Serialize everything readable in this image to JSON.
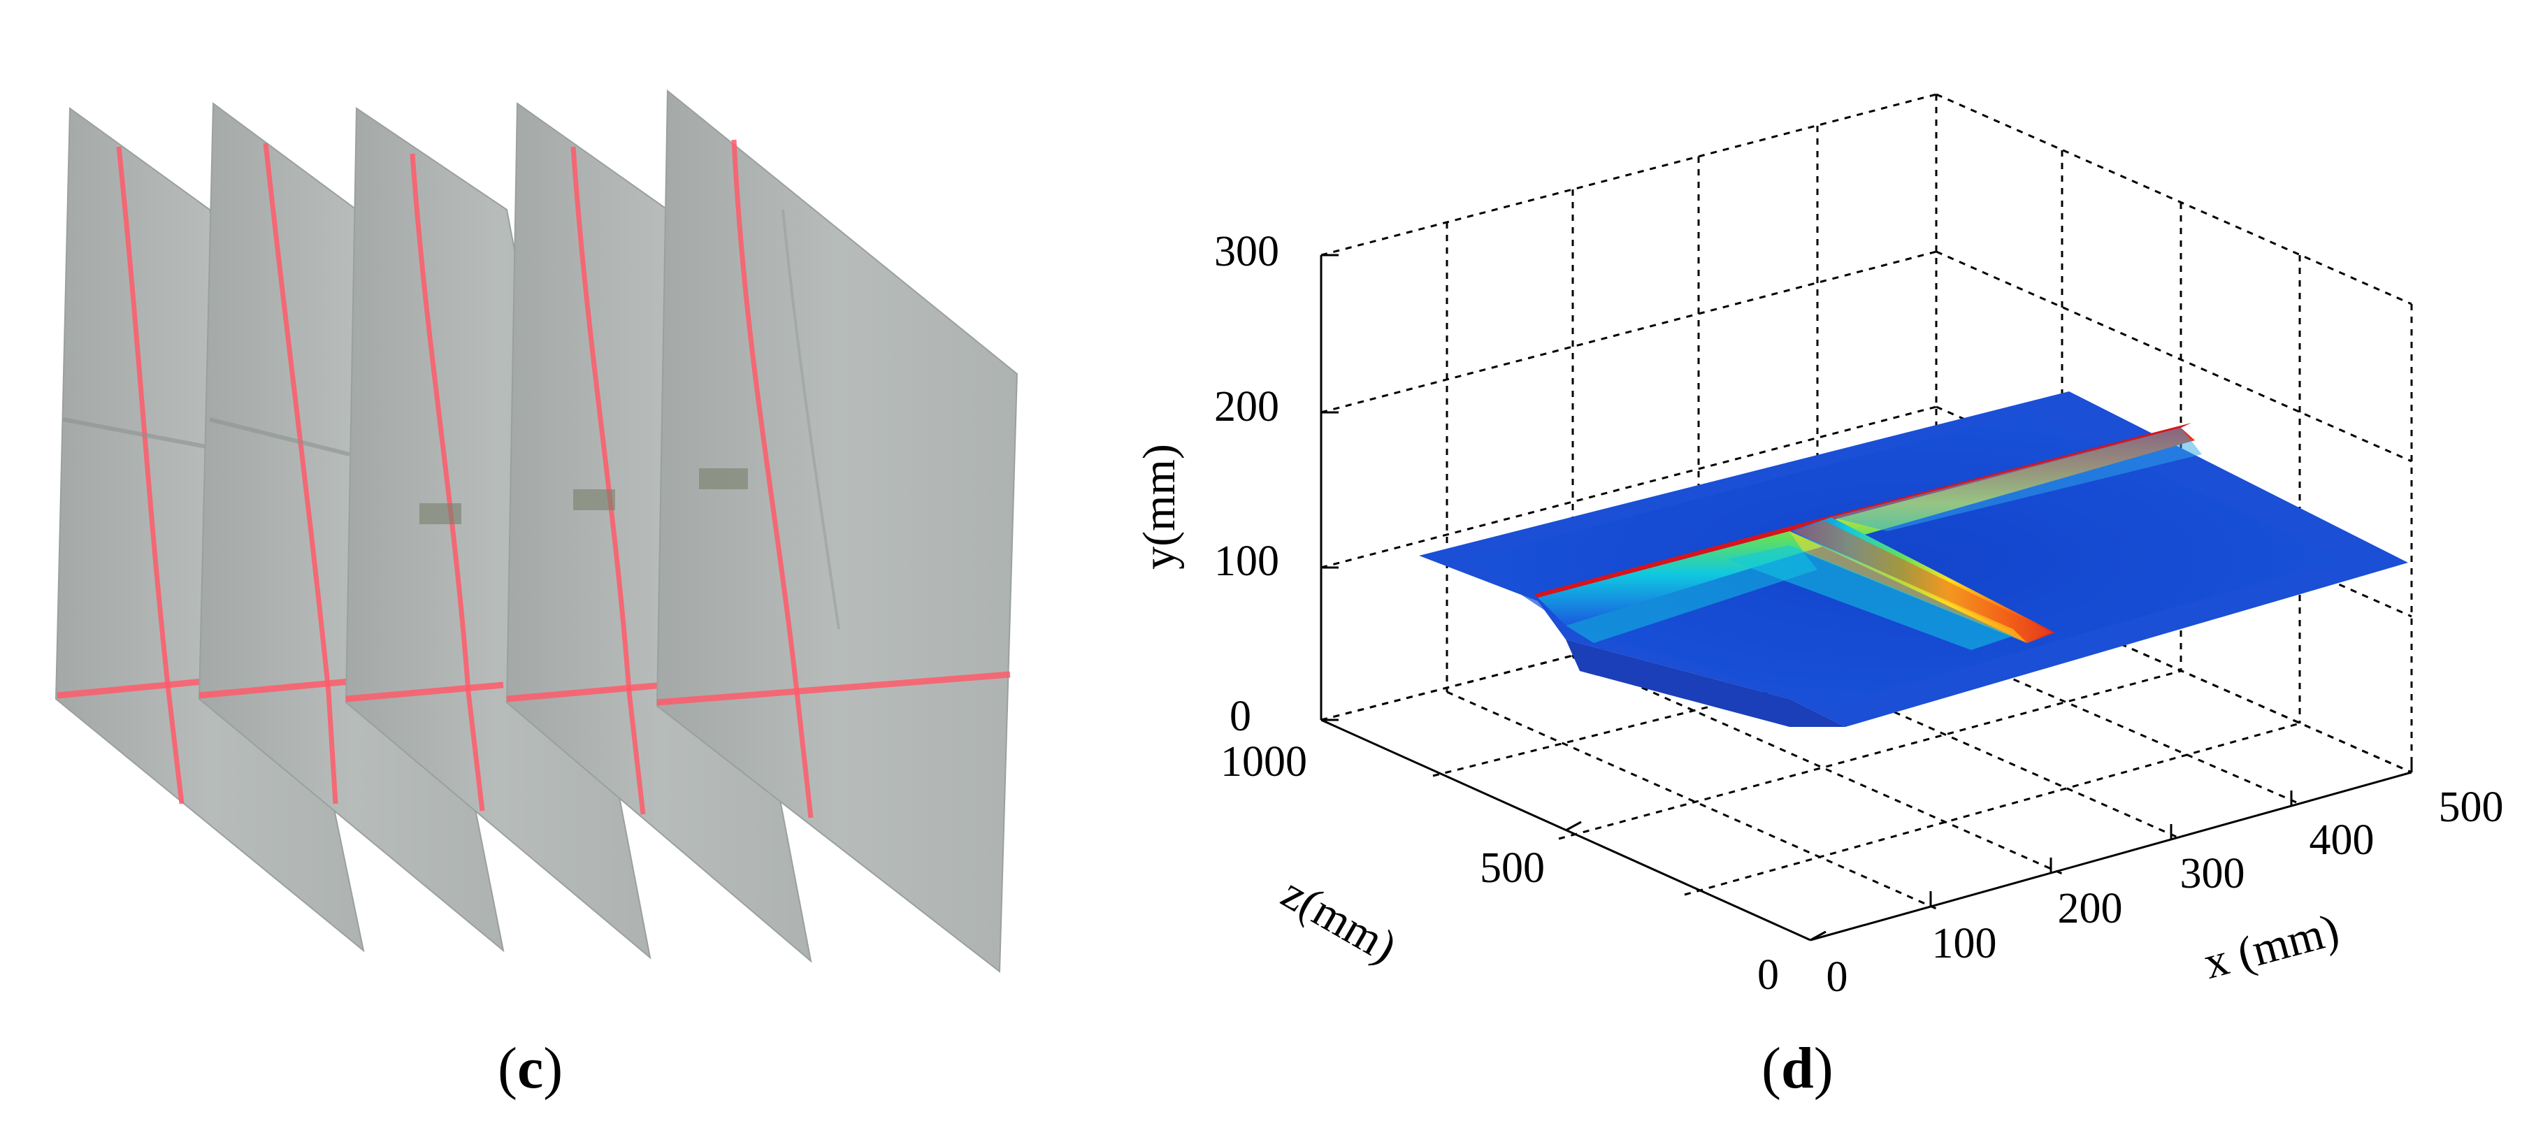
{
  "panel_c": {
    "label_open": "(",
    "label_letter": "c",
    "label_close": ")"
  },
  "panel_d": {
    "label_open": "(",
    "label_letter": "d",
    "label_close": ")",
    "y_axis": {
      "label": "y(mm)",
      "ticks": [
        "0",
        "100",
        "200",
        "300"
      ]
    },
    "z_axis": {
      "label": "z(mm)",
      "ticks": [
        "0",
        "500",
        "1000"
      ]
    },
    "x_axis": {
      "label": "x (mm)",
      "ticks": [
        "0",
        "100",
        "200",
        "300",
        "400",
        "500"
      ]
    },
    "grid": "dashed",
    "colormap": "jet"
  }
}
